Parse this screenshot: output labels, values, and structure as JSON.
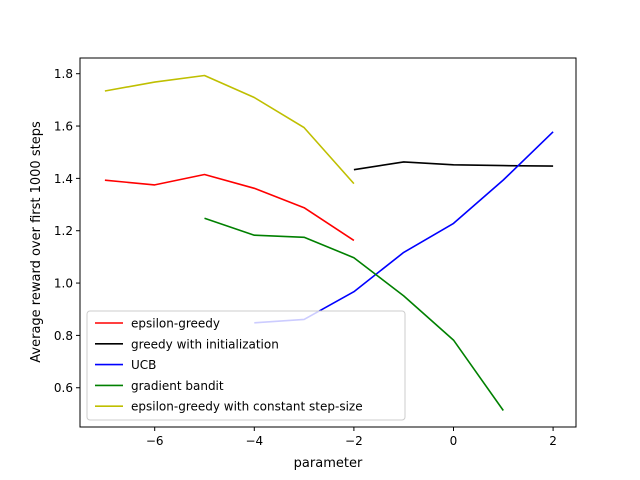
{
  "chart_data": {
    "type": "line",
    "xlabel": "parameter",
    "ylabel": "Average reward over first 1000 steps",
    "xlim": [
      -7.5,
      2.46
    ],
    "ylim": [
      0.45,
      1.86
    ],
    "xticks": [
      -6,
      -4,
      -2,
      0,
      2
    ],
    "xtick_labels": [
      "−6",
      "−4",
      "−2",
      "0",
      "2"
    ],
    "yticks": [
      0.6,
      0.8,
      1.0,
      1.2,
      1.4,
      1.6,
      1.8
    ],
    "ytick_labels": [
      "0.6",
      "0.8",
      "1.0",
      "1.2",
      "1.4",
      "1.6",
      "1.8"
    ],
    "grid": false,
    "legend_position": "lower-left",
    "series": [
      {
        "name": "epsilon-greedy",
        "color": "#ff0000",
        "x": [
          -7,
          -6,
          -5,
          -4,
          -3,
          -2
        ],
        "y": [
          1.393,
          1.375,
          1.415,
          1.362,
          1.288,
          1.163
        ]
      },
      {
        "name": "greedy with initialization",
        "color": "#000000",
        "x": [
          -2,
          -1,
          0,
          1,
          2
        ],
        "y": [
          1.433,
          1.463,
          1.452,
          1.449,
          1.447
        ]
      },
      {
        "name": "UCB",
        "color": "#0000ff",
        "x": [
          -4,
          -3,
          -2,
          -1,
          0,
          1,
          2
        ],
        "y": [
          0.848,
          0.861,
          0.967,
          1.117,
          1.228,
          1.394,
          1.578
        ]
      },
      {
        "name": "gradient bandit",
        "color": "#008000",
        "x": [
          -5,
          -4,
          -3,
          -2,
          -1,
          0,
          1
        ],
        "y": [
          1.248,
          1.183,
          1.175,
          1.097,
          0.951,
          0.782,
          0.513
        ]
      },
      {
        "name": "epsilon-greedy with constant step-size",
        "color": "#bfbf00",
        "x": [
          -7,
          -6,
          -5,
          -4,
          -3,
          -2
        ],
        "y": [
          1.734,
          1.768,
          1.793,
          1.709,
          1.594,
          1.38
        ]
      }
    ]
  }
}
